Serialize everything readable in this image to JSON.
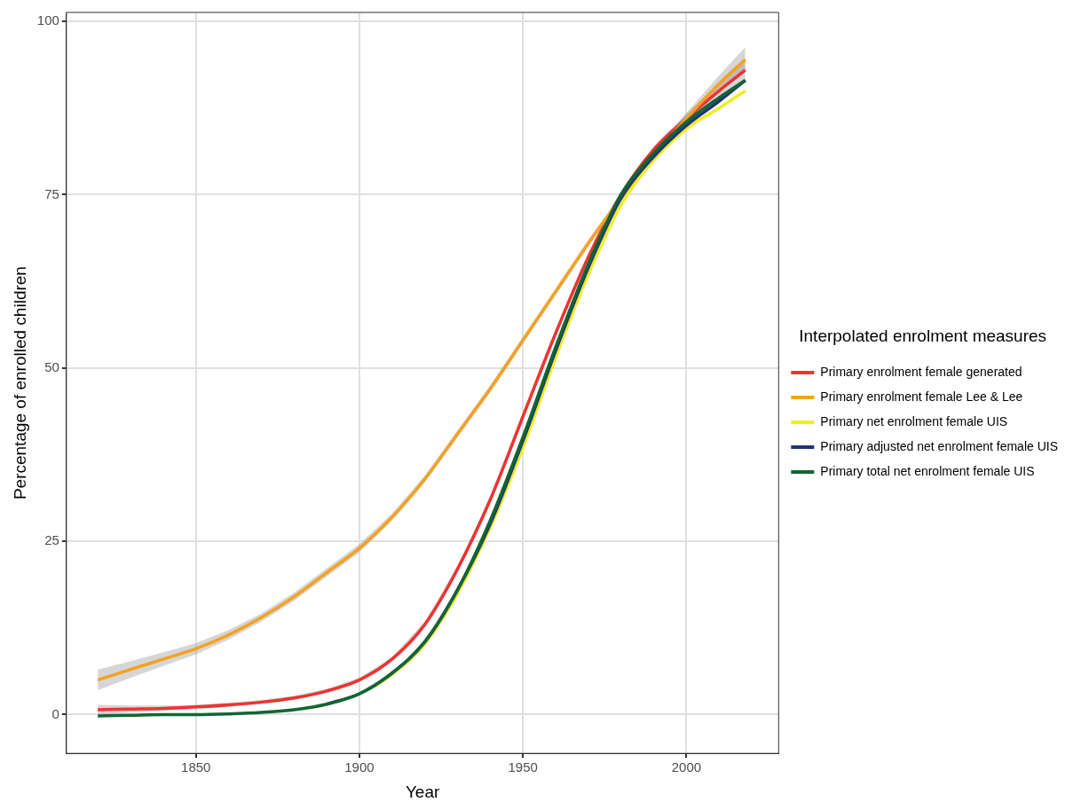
{
  "chart_data": {
    "type": "line",
    "xlabel": "Year",
    "ylabel": "Percentage of enrolled children",
    "legend_title": "Interpolated enrolment measures",
    "x": [
      1820,
      1830,
      1840,
      1850,
      1860,
      1870,
      1880,
      1890,
      1900,
      1910,
      1920,
      1930,
      1940,
      1950,
      1960,
      1970,
      1980,
      1990,
      2000,
      2010,
      2018
    ],
    "series": [
      {
        "name": "Primary enrolment female generated",
        "color": "#ee3333",
        "values": [
          0.7,
          0.8,
          0.9,
          1.1,
          1.4,
          1.8,
          2.4,
          3.4,
          5,
          8,
          13,
          21,
          31,
          43,
          55,
          66,
          75,
          81.5,
          86,
          90,
          93
        ],
        "lower": [
          0,
          0.3,
          0.5,
          0.8,
          1.1,
          1.5,
          2.1,
          3.1,
          4.7,
          7.7,
          12.6,
          20.6,
          30.6,
          42.6,
          54.6,
          65.6,
          74.6,
          81,
          85.3,
          89,
          91.5
        ],
        "upper": [
          1.4,
          1.3,
          1.3,
          1.4,
          1.7,
          2.1,
          2.7,
          3.7,
          5.3,
          8.3,
          13.4,
          21.4,
          31.4,
          43.4,
          55.4,
          66.4,
          75.4,
          82,
          86.7,
          91,
          94.5
        ]
      },
      {
        "name": "Primary enrolment female Lee & Lee",
        "color": "#f5a122",
        "values": [
          5,
          6.5,
          8,
          9.5,
          11.5,
          14,
          17,
          20.5,
          24,
          28.5,
          34,
          40.5,
          47,
          54,
          61,
          68,
          74.5,
          80.5,
          86,
          91,
          94.5
        ],
        "lower": [
          3.5,
          5.3,
          7,
          8.7,
          10.8,
          13.4,
          16.4,
          19.9,
          23.4,
          28,
          33.5,
          40,
          46.5,
          53.5,
          60.5,
          67.5,
          74,
          79.9,
          85.2,
          89.8,
          92.7
        ],
        "upper": [
          6.5,
          7.7,
          9,
          10.3,
          12.2,
          14.6,
          17.6,
          21.1,
          24.6,
          29,
          34.5,
          41,
          47.5,
          54.5,
          61.5,
          68.5,
          75,
          81.1,
          86.8,
          92.2,
          96.3
        ]
      },
      {
        "name": "Primary net enrolment female UIS",
        "color": "#eeee22",
        "values": [
          null,
          null,
          null,
          null,
          null,
          null,
          null,
          1.5,
          3,
          5.8,
          10.2,
          17.5,
          27,
          38.5,
          51.5,
          63.5,
          73.5,
          80,
          84.5,
          87.5,
          90
        ]
      },
      {
        "name": "Primary adjusted net enrolment female UIS",
        "color": "#223377",
        "values": [
          null,
          null,
          null,
          null,
          null,
          null,
          null,
          1.5,
          3,
          6,
          10.5,
          18,
          27.5,
          39.5,
          52.5,
          64.5,
          74.5,
          80.5,
          85,
          88.5,
          91.5
        ]
      },
      {
        "name": "Primary total net enrolment female UIS",
        "color": "#116633",
        "values": [
          -0.2,
          -0.1,
          0,
          0,
          0.1,
          0.3,
          0.7,
          1.5,
          3,
          6,
          10.5,
          18,
          28,
          40,
          53,
          65,
          75,
          81,
          85.5,
          89,
          91.5
        ]
      }
    ],
    "xlim": [
      1810.4,
      2028.2
    ],
    "xticks": [
      1850,
      1900,
      1950,
      2000
    ],
    "ylim": [
      -5.6,
      101.3
    ],
    "yticks": [
      0,
      25,
      50,
      75,
      100
    ],
    "grid": true,
    "legend": "right",
    "marker": "none",
    "line_style": "solid"
  }
}
